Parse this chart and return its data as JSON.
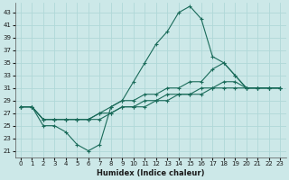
{
  "xlabel": "Humidex (Indice chaleur)",
  "background_color": "#cce8e8",
  "grid_color": "#b0d8d8",
  "line_color": "#1a6b5a",
  "xlim": [
    -0.5,
    23.5
  ],
  "ylim": [
    20.0,
    44.5
  ],
  "yticks": [
    21,
    23,
    25,
    27,
    29,
    31,
    33,
    35,
    37,
    39,
    41,
    43
  ],
  "xticks": [
    0,
    1,
    2,
    3,
    4,
    5,
    6,
    7,
    8,
    9,
    10,
    11,
    12,
    13,
    14,
    15,
    16,
    17,
    18,
    19,
    20,
    21,
    22,
    23
  ],
  "series": [
    [
      28,
      28,
      25,
      25,
      24,
      22,
      21,
      22,
      28,
      29,
      32,
      35,
      38,
      40,
      43,
      44,
      42,
      36,
      35,
      33,
      31,
      31,
      31,
      31
    ],
    [
      28,
      28,
      26,
      26,
      26,
      26,
      26,
      27,
      28,
      29,
      29,
      30,
      30,
      31,
      31,
      32,
      32,
      34,
      35,
      33,
      31,
      31,
      31,
      31
    ],
    [
      28,
      28,
      26,
      26,
      26,
      26,
      26,
      27,
      27,
      28,
      28,
      29,
      29,
      30,
      30,
      30,
      31,
      31,
      32,
      32,
      31,
      31,
      31,
      31
    ],
    [
      28,
      28,
      26,
      26,
      26,
      26,
      26,
      26,
      27,
      28,
      28,
      28,
      29,
      29,
      30,
      30,
      30,
      31,
      31,
      31,
      31,
      31,
      31,
      31
    ]
  ]
}
